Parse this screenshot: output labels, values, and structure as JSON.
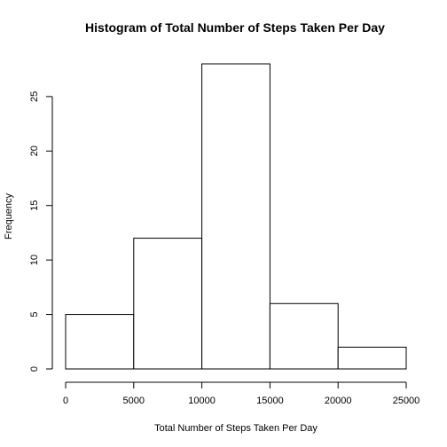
{
  "chart_data": {
    "type": "bar",
    "title": "Histogram of Total Number of Steps Taken Per Day",
    "xlabel": "Total Number of Steps Taken Per Day",
    "ylabel": "Frequency",
    "bins": [
      {
        "from": 0,
        "to": 5000,
        "count": 5
      },
      {
        "from": 5000,
        "to": 10000,
        "count": 12
      },
      {
        "from": 10000,
        "to": 15000,
        "count": 28
      },
      {
        "from": 15000,
        "to": 20000,
        "count": 6
      },
      {
        "from": 20000,
        "to": 25000,
        "count": 2
      }
    ],
    "xlim": [
      0,
      25000
    ],
    "ylim": [
      0,
      28
    ],
    "x_ticks": [
      0,
      5000,
      10000,
      15000,
      20000,
      25000
    ],
    "x_tick_labels": [
      "0",
      "5000",
      "10000",
      "15000",
      "20000",
      "25000"
    ],
    "y_ticks": [
      0,
      5,
      10,
      15,
      20,
      25
    ],
    "y_tick_labels": [
      "0",
      "5",
      "10",
      "15",
      "20",
      "25"
    ],
    "grid": false,
    "legend": "none",
    "colors": {
      "bar_fill": "#ffffff",
      "bar_stroke": "#000000",
      "background": "#ffffff"
    }
  }
}
